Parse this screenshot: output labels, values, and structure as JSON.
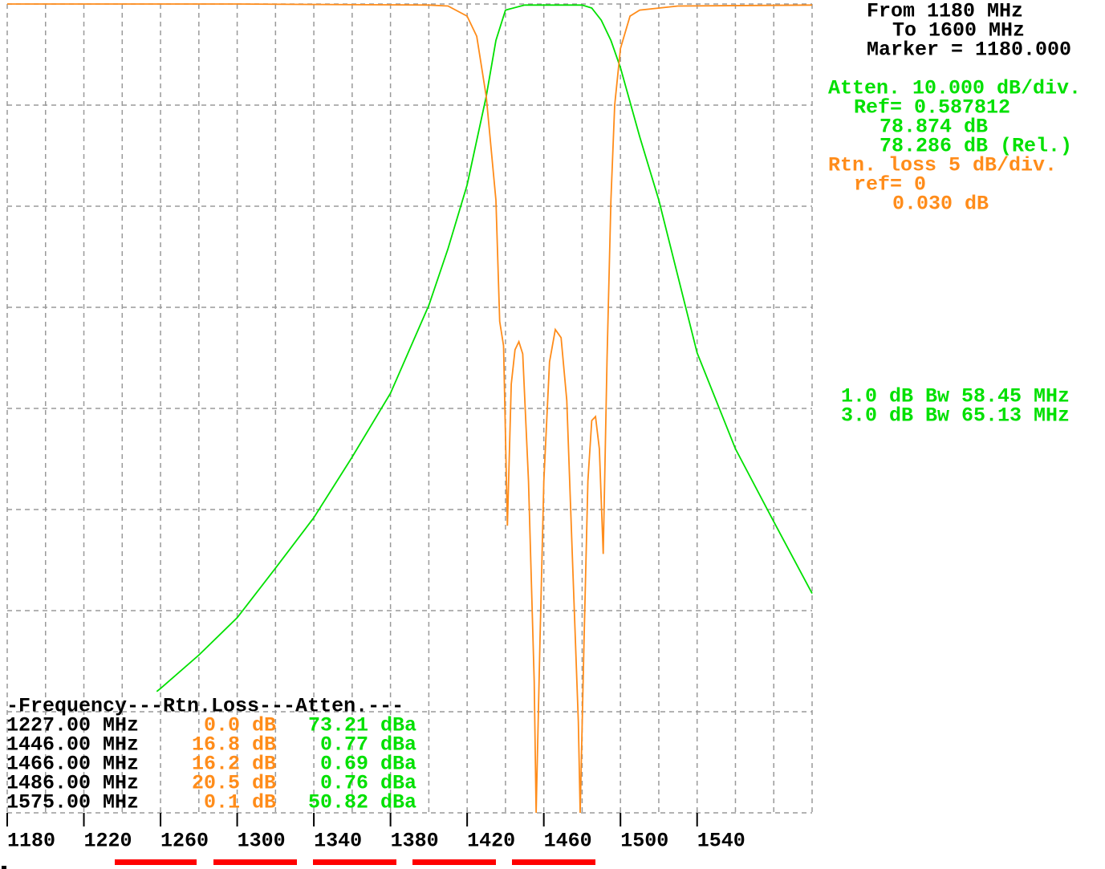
{
  "chart_data": {
    "type": "line",
    "xlim": [
      1180,
      1600
    ],
    "xticks": [
      1180,
      1220,
      1260,
      1300,
      1340,
      1380,
      1420,
      1460,
      1500,
      1540
    ],
    "xgrid": [
      1200,
      1220,
      1240,
      1260,
      1280,
      1300,
      1320,
      1340,
      1360,
      1380,
      1400,
      1420,
      1440,
      1460,
      1480,
      1500,
      1520,
      1540,
      1560,
      1580
    ],
    "ylim": [
      80,
      0
    ],
    "ygrid": [
      0,
      10,
      20,
      30,
      40,
      50,
      60,
      70,
      80
    ],
    "y2lim": [
      40,
      0
    ],
    "grid_color": "#9a9a9a",
    "series": [
      {
        "color": "#00e000",
        "x": [
          1258,
          1260,
          1280,
          1300,
          1320,
          1340,
          1360,
          1380,
          1400,
          1410,
          1420,
          1430,
          1435,
          1440,
          1450,
          1460,
          1470,
          1480,
          1485,
          1490,
          1495,
          1500,
          1510,
          1520,
          1540,
          1560,
          1580,
          1600
        ],
        "values": [
          68,
          67.7,
          64.4,
          60.7,
          55.8,
          50.8,
          44.8,
          38.5,
          29.8,
          24.2,
          17.9,
          9.1,
          3.6,
          0.6,
          0.1,
          0.1,
          0.1,
          0.1,
          0.4,
          1.6,
          3.6,
          6.3,
          13.1,
          19.4,
          34.5,
          44,
          51.2,
          58.3
        ]
      },
      {
        "color": "#ff8c1a",
        "axis": "y2",
        "x": [
          1180,
          1300,
          1400,
          1410,
          1420,
          1425,
          1430,
          1435,
          1437,
          1439,
          1441,
          1443,
          1445,
          1447,
          1449,
          1452,
          1455,
          1456,
          1458,
          1460,
          1463,
          1466,
          1469,
          1472,
          1475,
          1478,
          1479,
          1481,
          1483,
          1485,
          1487,
          1489,
          1491,
          1493,
          1495,
          1497,
          1500,
          1505,
          1510,
          1530,
          1600
        ],
        "values": [
          0,
          0,
          0.05,
          0.1,
          0.6,
          1.6,
          4.6,
          9.7,
          15.7,
          16.9,
          25.8,
          18.8,
          17.1,
          16.7,
          17.3,
          23.6,
          33.5,
          40,
          31.5,
          23.6,
          17.7,
          16.1,
          16.5,
          19.6,
          27.6,
          35.5,
          40,
          31.5,
          23.6,
          20.6,
          20.4,
          22,
          27.2,
          17.5,
          9.7,
          5,
          2.2,
          0.6,
          0.3,
          0.1,
          0.05
        ]
      }
    ]
  },
  "info": [
    {
      "text": "From 1180 MHz",
      "color": "#000000"
    },
    {
      "text": "To 1600 MHz",
      "color": "#000000"
    },
    {
      "text": "Marker = 1180.000",
      "color": "#000000"
    },
    {
      "text": "Atten. 10.000 dB/div.",
      "color": "#00e000"
    },
    {
      "text": "Ref= 0.587812",
      "color": "#00e000"
    },
    {
      "text": "78.874 dB",
      "color": "#00e000"
    },
    {
      "text": "78.286 dB (Rel.)",
      "color": "#00e000"
    },
    {
      "text": "Rtn. loss 5 dB/div.",
      "color": "#ff8c1a"
    },
    {
      "text": "ref= 0",
      "color": "#ff8c1a"
    },
    {
      "text": "0.030 dB",
      "color": "#ff8c1a"
    },
    {
      "text": "1.0 dB Bw 58.45 MHz",
      "color": "#00e000"
    },
    {
      "text": "3.0 dB Bw 65.13 MHz",
      "color": "#00e000"
    }
  ],
  "table": {
    "header": "-Frequency---Rtn.Loss---Atten.---",
    "colors": [
      "#000000",
      "#ff8c1a",
      "#00e000"
    ],
    "rows": [
      [
        "1227.00 MHz",
        "0.0 dB",
        "73.21 dBa"
      ],
      [
        "1446.00 MHz",
        "16.8 dB",
        "0.77 dBa"
      ],
      [
        "1466.00 MHz",
        "16.2 dB",
        "0.69 dBa"
      ],
      [
        "1486.00 MHz",
        "20.5 dB",
        "0.76 dBa"
      ],
      [
        "1575.00 MHz",
        "0.1 dB",
        "50.82 dBa"
      ]
    ]
  }
}
